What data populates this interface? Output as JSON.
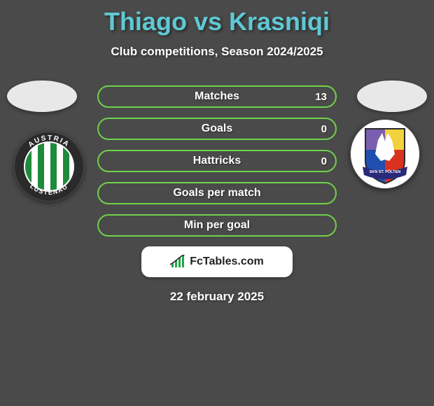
{
  "header": {
    "title": "Thiago vs Krasniqi",
    "title_color": "#5fc9d4",
    "title_fontsize": 36,
    "subtitle": "Club competitions, Season 2024/2025",
    "subtitle_color": "#ffffff",
    "subtitle_fontsize": 17
  },
  "background_color": "#4a4a4a",
  "avatars": {
    "left_bg": "#e8e8e8",
    "right_bg": "#e8e8e8"
  },
  "clubs": {
    "left": {
      "name": "Austria Lustenau",
      "ring_text_top": "AUSTRIA",
      "ring_text_bottom": "LUSTENAU",
      "outer_color": "#2a2a2a",
      "inner_bg": "#ffffff",
      "stripe_colors": [
        "#1f8a3b",
        "#ffffff"
      ]
    },
    "right": {
      "name": "SKN St. Pölten",
      "outer_bg": "#ffffff",
      "panel_colors": [
        "#7a5fb0",
        "#f2d23c",
        "#1f4fb0",
        "#d9321f"
      ],
      "banner_text": "SKN ST. PÖLTEN",
      "banner_bg": "#2a2a7a",
      "banner_text_color": "#ffffff",
      "wolf_color": "#ffffff"
    }
  },
  "stats": {
    "border_color": "#6fd14a",
    "row_bg": "transparent",
    "label_color": "#ffffff",
    "value_color": "#ffffff",
    "label_fontsize": 16,
    "value_fontsize": 15,
    "rows": [
      {
        "label": "Matches",
        "left": "",
        "right": "13"
      },
      {
        "label": "Goals",
        "left": "",
        "right": "0"
      },
      {
        "label": "Hattricks",
        "left": "",
        "right": "0"
      },
      {
        "label": "Goals per match",
        "left": "",
        "right": ""
      },
      {
        "label": "Min per goal",
        "left": "",
        "right": ""
      }
    ]
  },
  "footer": {
    "brand_text": "FcTables.com",
    "box_bg": "#ffffff",
    "text_color": "#222222",
    "icon_color": "#1fa84a",
    "date": "22 february 2025",
    "date_color": "#ffffff"
  }
}
